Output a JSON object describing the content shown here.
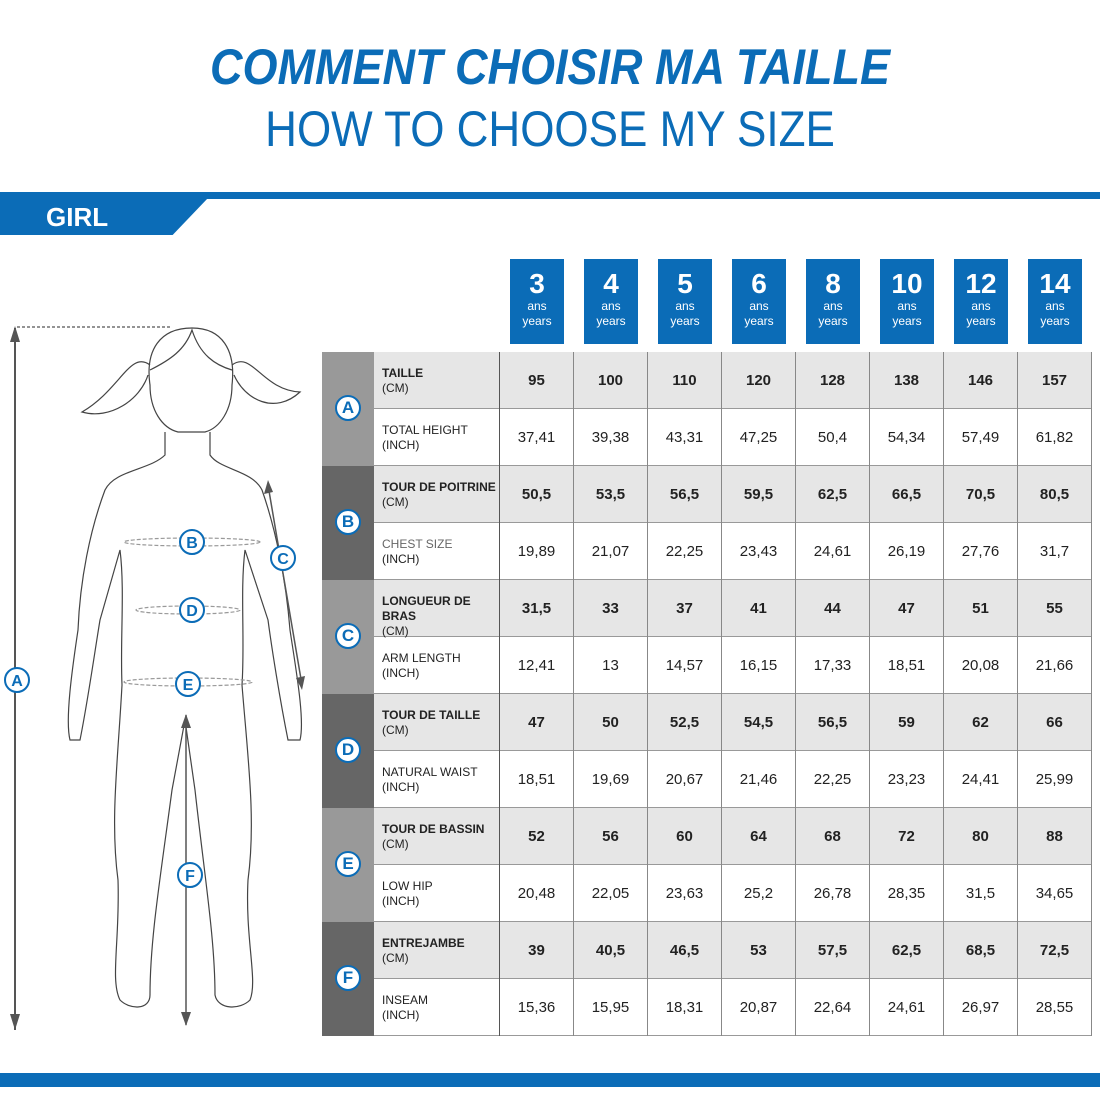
{
  "title_fr": "COMMENT CHOISIR MA TAILLE",
  "title_en": "HOW TO CHOOSE MY SIZE",
  "category": "GIRL",
  "brand_color": "#0b6cb7",
  "sizes": [
    {
      "n": "3",
      "fr": "ans",
      "en": "years"
    },
    {
      "n": "4",
      "fr": "ans",
      "en": "years"
    },
    {
      "n": "5",
      "fr": "ans",
      "en": "years"
    },
    {
      "n": "6",
      "fr": "ans",
      "en": "years"
    },
    {
      "n": "8",
      "fr": "ans",
      "en": "years"
    },
    {
      "n": "10",
      "fr": "ans",
      "en": "years"
    },
    {
      "n": "12",
      "fr": "ans",
      "en": "years"
    },
    {
      "n": "14",
      "fr": "ans",
      "en": "years"
    }
  ],
  "groups": [
    {
      "letter": "A",
      "rows": [
        {
          "name": "TAILLE",
          "unit": "(CM)",
          "values": [
            "95",
            "100",
            "110",
            "120",
            "128",
            "138",
            "146",
            "157"
          ]
        },
        {
          "name": "TOTAL HEIGHT",
          "unit": "(INCH)",
          "values": [
            "37,41",
            "39,38",
            "43,31",
            "47,25",
            "50,4",
            "54,34",
            "57,49",
            "61,82"
          ]
        }
      ]
    },
    {
      "letter": "B",
      "rows": [
        {
          "name": "TOUR DE POITRINE",
          "unit": "(CM)",
          "values": [
            "50,5",
            "53,5",
            "56,5",
            "59,5",
            "62,5",
            "66,5",
            "70,5",
            "80,5"
          ]
        },
        {
          "name": "CHEST SIZE",
          "unit": "(INCH)",
          "values": [
            "19,89",
            "21,07",
            "22,25",
            "23,43",
            "24,61",
            "26,19",
            "27,76",
            "31,7"
          ]
        }
      ]
    },
    {
      "letter": "C",
      "rows": [
        {
          "name": "LONGUEUR DE BRAS",
          "unit": "(CM)",
          "values": [
            "31,5",
            "33",
            "37",
            "41",
            "44",
            "47",
            "51",
            "55"
          ]
        },
        {
          "name": "ARM LENGTH",
          "unit": "(INCH)",
          "values": [
            "12,41",
            "13",
            "14,57",
            "16,15",
            "17,33",
            "18,51",
            "20,08",
            "21,66"
          ]
        }
      ]
    },
    {
      "letter": "D",
      "rows": [
        {
          "name": "TOUR DE TAILLE",
          "unit": "(CM)",
          "values": [
            "47",
            "50",
            "52,5",
            "54,5",
            "56,5",
            "59",
            "62",
            "66"
          ]
        },
        {
          "name": "NATURAL WAIST",
          "unit": "(INCH)",
          "values": [
            "18,51",
            "19,69",
            "20,67",
            "21,46",
            "22,25",
            "23,23",
            "24,41",
            "25,99"
          ]
        }
      ]
    },
    {
      "letter": "E",
      "rows": [
        {
          "name": "TOUR DE BASSIN",
          "unit": "(CM)",
          "values": [
            "52",
            "56",
            "60",
            "64",
            "68",
            "72",
            "80",
            "88"
          ]
        },
        {
          "name": "LOW HIP",
          "unit": "(INCH)",
          "values": [
            "20,48",
            "22,05",
            "23,63",
            "25,2",
            "26,78",
            "28,35",
            "31,5",
            "34,65"
          ]
        }
      ]
    },
    {
      "letter": "F",
      "rows": [
        {
          "name": "ENTREJAMBE",
          "unit": "(CM)",
          "values": [
            "39",
            "40,5",
            "46,5",
            "53",
            "57,5",
            "62,5",
            "68,5",
            "72,5"
          ]
        },
        {
          "name": "INSEAM",
          "unit": "(INCH)",
          "values": [
            "15,36",
            "15,95",
            "18,31",
            "20,87",
            "22,64",
            "24,61",
            "26,97",
            "28,55"
          ]
        }
      ]
    }
  ],
  "figure_labels": [
    "A",
    "B",
    "C",
    "D",
    "E",
    "F"
  ]
}
